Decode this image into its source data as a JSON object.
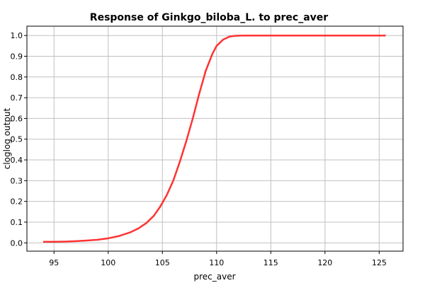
{
  "chart_data": {
    "type": "line",
    "title": "Response of Ginkgo_biloba_L. to prec_aver",
    "xlabel": "prec_aver",
    "ylabel": "cloglog output",
    "xlim": [
      92.5,
      127.2
    ],
    "ylim": [
      -0.04,
      1.045
    ],
    "xticks": [
      "95",
      "100",
      "105",
      "110",
      "115",
      "120",
      "125"
    ],
    "yticks": [
      "0.0",
      "0.1",
      "0.2",
      "0.3",
      "0.4",
      "0.5",
      "0.6",
      "0.7",
      "0.8",
      "0.9",
      "1.0"
    ],
    "grid": true,
    "line_color": "#ff3333",
    "series": [
      {
        "x": [
          94.0,
          95.0,
          96.0,
          97.0,
          98.0,
          99.0,
          100.0,
          101.0,
          102.0,
          102.8,
          103.5,
          104.2,
          104.8,
          105.4,
          106.0,
          106.6,
          107.2,
          107.8,
          108.4,
          109.0,
          109.6,
          110.0,
          110.6,
          111.2,
          111.8,
          112.5,
          113.0,
          115.0,
          120.0,
          125.6
        ],
        "y": [
          0.005,
          0.005,
          0.006,
          0.008,
          0.011,
          0.015,
          0.022,
          0.033,
          0.05,
          0.07,
          0.095,
          0.13,
          0.175,
          0.23,
          0.3,
          0.39,
          0.49,
          0.6,
          0.72,
          0.83,
          0.91,
          0.95,
          0.98,
          0.995,
          0.999,
          1.0,
          1.0,
          1.0,
          1.0,
          1.0
        ]
      }
    ]
  }
}
